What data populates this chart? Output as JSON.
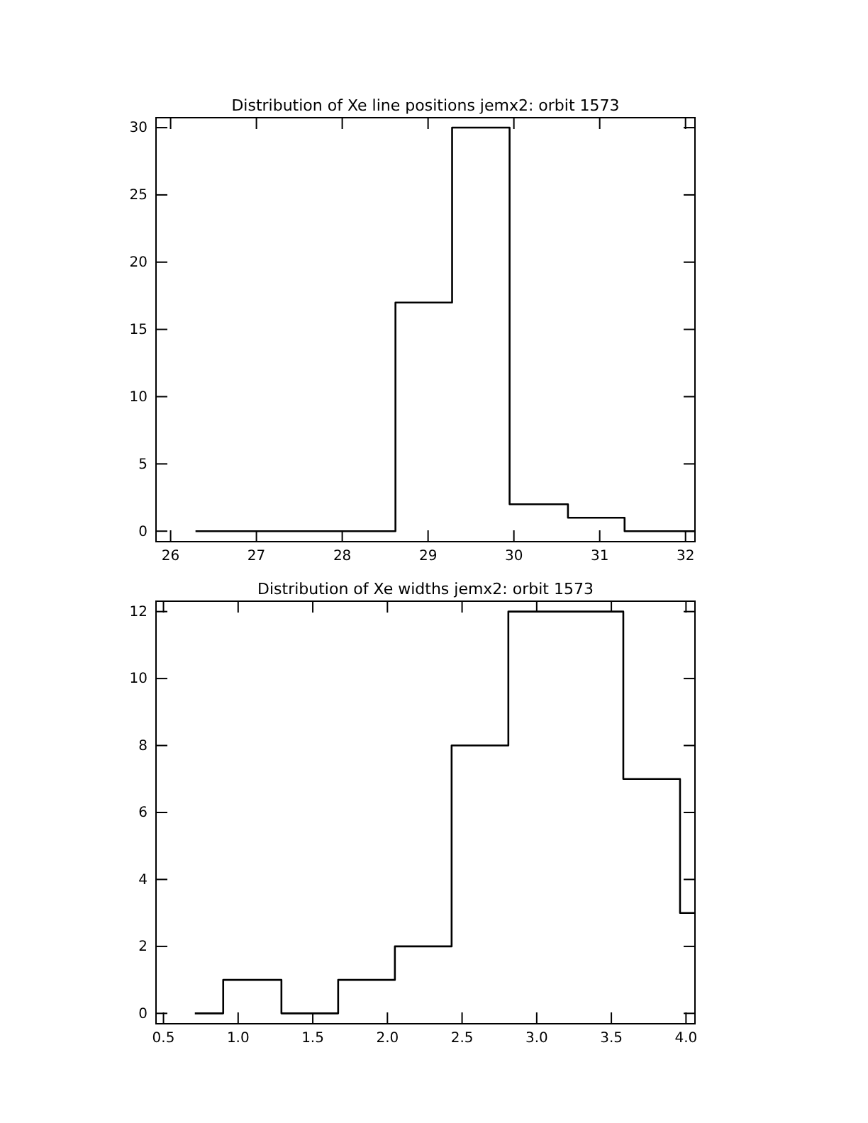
{
  "chart_data": [
    {
      "type": "histogram",
      "title": "Distribution of Xe line positions jemx2: orbit 1573",
      "bins": [
        26.29,
        28.62,
        29.28,
        29.95,
        30.63,
        31.29,
        32.11
      ],
      "values": [
        0,
        17,
        30,
        2,
        1,
        0
      ],
      "color": "#000000",
      "xlim": [
        25.83,
        32.11
      ],
      "ylim": [
        -0.78,
        30.74
      ],
      "xticks": [
        26,
        27,
        28,
        29,
        30,
        31,
        32
      ],
      "yticks": [
        0,
        5,
        10,
        15,
        20,
        25,
        30
      ]
    },
    {
      "type": "histogram",
      "title": "Distribution of Xe widths jemx2: orbit 1573",
      "bins": [
        0.71,
        0.9,
        1.29,
        1.67,
        2.05,
        2.43,
        2.81,
        3.2,
        3.58,
        3.96,
        4.06
      ],
      "values": [
        0,
        1,
        0,
        1,
        2,
        8,
        12,
        12,
        7,
        3
      ],
      "color": "#000000",
      "xlim": [
        0.45,
        4.06
      ],
      "ylim": [
        -0.31,
        12.31
      ],
      "xticks": [
        {
          "value": 0.5,
          "label": "0.5"
        },
        {
          "value": 1,
          "label": "1.0"
        },
        {
          "value": 1.5,
          "label": "1.5"
        },
        {
          "value": 2,
          "label": "2.0"
        },
        {
          "value": 2.5,
          "label": "2.5"
        },
        {
          "value": 3,
          "label": "3.0"
        },
        {
          "value": 3.5,
          "label": "3.5"
        },
        {
          "value": 4,
          "label": "4.0"
        }
      ],
      "yticks": [
        0,
        2,
        4,
        6,
        8,
        10,
        12
      ]
    }
  ]
}
